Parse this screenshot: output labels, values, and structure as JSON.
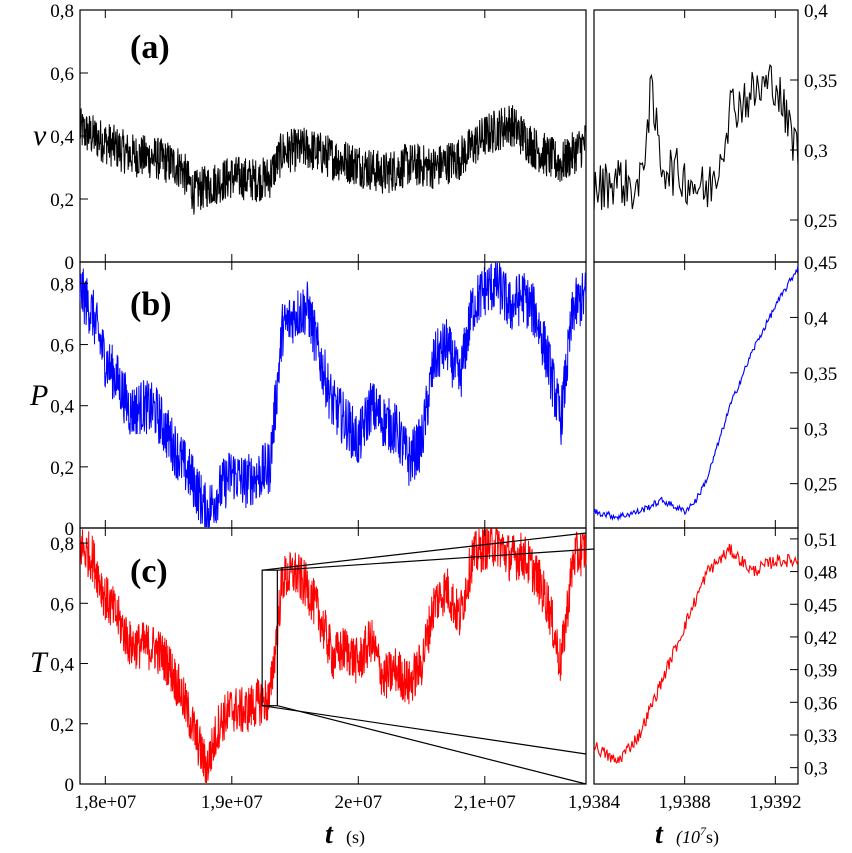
{
  "chart_data": [
    {
      "panel": "(a)",
      "type": "line",
      "ylabel": "v",
      "xlim": [
        17800000,
        21800000
      ],
      "ylim": [
        0,
        0.8
      ],
      "yticks": [
        "0",
        "0,2",
        "0,4",
        "0,6",
        "0,8"
      ],
      "color": "#000000",
      "series": [
        {
          "x": [
            17800000,
            18000000,
            18200000,
            18400000,
            18600000,
            18700000,
            18800000,
            19000000,
            19200000,
            19300000,
            19400000,
            19600000,
            19800000,
            20000000,
            20200000,
            20400000,
            20600000,
            20800000,
            21000000,
            21200000,
            21400000,
            21600000,
            21800000
          ],
          "values": [
            0.42,
            0.38,
            0.34,
            0.33,
            0.3,
            0.22,
            0.24,
            0.27,
            0.26,
            0.27,
            0.35,
            0.36,
            0.33,
            0.31,
            0.28,
            0.31,
            0.3,
            0.33,
            0.4,
            0.44,
            0.36,
            0.31,
            0.38
          ]
        }
      ]
    },
    {
      "panel": "(b)",
      "type": "line",
      "ylabel": "P",
      "xlim": [
        17800000,
        21800000
      ],
      "ylim": [
        0,
        0.87
      ],
      "yticks": [
        "0",
        "0,2",
        "0,4",
        "0,6",
        "0,8"
      ],
      "color": "#0000ff",
      "series": [
        {
          "x": [
            17800000,
            17900000,
            18000000,
            18100000,
            18200000,
            18300000,
            18400000,
            18500000,
            18600000,
            18700000,
            18800000,
            18900000,
            19000000,
            19100000,
            19200000,
            19300000,
            19400000,
            19500000,
            19600000,
            19700000,
            19800000,
            19900000,
            20000000,
            20100000,
            20200000,
            20300000,
            20400000,
            20500000,
            20600000,
            20700000,
            20800000,
            20900000,
            21000000,
            21100000,
            21200000,
            21300000,
            21400000,
            21500000,
            21600000,
            21700000,
            21800000
          ],
          "values": [
            0.78,
            0.7,
            0.55,
            0.48,
            0.38,
            0.4,
            0.38,
            0.3,
            0.22,
            0.15,
            0.05,
            0.12,
            0.18,
            0.15,
            0.17,
            0.2,
            0.65,
            0.7,
            0.72,
            0.55,
            0.4,
            0.35,
            0.28,
            0.4,
            0.35,
            0.32,
            0.22,
            0.28,
            0.55,
            0.6,
            0.48,
            0.72,
            0.78,
            0.8,
            0.72,
            0.76,
            0.7,
            0.55,
            0.35,
            0.72,
            0.76
          ]
        }
      ]
    },
    {
      "panel": "(c)",
      "type": "line",
      "ylabel": "T",
      "xlabel": "t",
      "xunit": "(s)",
      "xlim": [
        17800000,
        21800000
      ],
      "ylim": [
        0,
        0.85
      ],
      "yticks": [
        "0",
        "0,2",
        "0,4",
        "0,6",
        "0,8"
      ],
      "xticks": [
        {
          "value": 18000000,
          "label": "1,8e+07"
        },
        {
          "value": 19000000,
          "label": "1,9e+07"
        },
        {
          "value": 20000000,
          "label": "2e+07"
        },
        {
          "value": 21000000,
          "label": "2,1e+07"
        }
      ],
      "color": "#ff0000",
      "series": [
        {
          "x": [
            17800000,
            17900000,
            18000000,
            18100000,
            18200000,
            18300000,
            18400000,
            18500000,
            18600000,
            18700000,
            18800000,
            18900000,
            19000000,
            19100000,
            19200000,
            19300000,
            19400000,
            19500000,
            19600000,
            19700000,
            19800000,
            19900000,
            20000000,
            20100000,
            20200000,
            20300000,
            20400000,
            20500000,
            20600000,
            20700000,
            20800000,
            20900000,
            21000000,
            21100000,
            21200000,
            21300000,
            21400000,
            21500000,
            21600000,
            21700000,
            21800000
          ],
          "values": [
            0.79,
            0.75,
            0.62,
            0.55,
            0.46,
            0.46,
            0.45,
            0.4,
            0.3,
            0.18,
            0.05,
            0.2,
            0.25,
            0.24,
            0.27,
            0.28,
            0.68,
            0.7,
            0.65,
            0.55,
            0.42,
            0.45,
            0.4,
            0.48,
            0.35,
            0.38,
            0.33,
            0.4,
            0.6,
            0.65,
            0.55,
            0.75,
            0.79,
            0.8,
            0.75,
            0.76,
            0.7,
            0.6,
            0.4,
            0.75,
            0.78
          ]
        }
      ],
      "zoom_box": {
        "x": [
          19240000,
          19360000
        ],
        "y": [
          0.26,
          0.71
        ]
      }
    },
    {
      "panel": "inset-a",
      "type": "line",
      "xlim": [
        19384000,
        19393000
      ],
      "ylim": [
        0.22,
        0.4
      ],
      "yticks": [
        {
          "value": 0.25,
          "label": "0,25"
        },
        {
          "value": 0.3,
          "label": "0,3"
        },
        {
          "value": 0.35,
          "label": "0,35"
        },
        {
          "value": 0.4,
          "label": "0,4"
        }
      ],
      "color": "#000000",
      "series": [
        {
          "x": [
            19384000,
            19385000,
            19386000,
            19386500,
            19387000,
            19388000,
            19389000,
            19389500,
            19390000,
            19391000,
            19392000,
            19392500,
            19393000
          ],
          "values": [
            0.27,
            0.28,
            0.27,
            0.34,
            0.29,
            0.28,
            0.27,
            0.29,
            0.33,
            0.34,
            0.35,
            0.32,
            0.3
          ]
        }
      ]
    },
    {
      "panel": "inset-b",
      "type": "line",
      "xlim": [
        19384000,
        19393000
      ],
      "ylim": [
        0.21,
        0.45
      ],
      "yticks": [
        {
          "value": 0.25,
          "label": "0,25"
        },
        {
          "value": 0.3,
          "label": "0,3"
        },
        {
          "value": 0.35,
          "label": "0,35"
        },
        {
          "value": 0.4,
          "label": "0,4"
        },
        {
          "value": 0.45,
          "label": "0,45"
        }
      ],
      "color": "#0000ff",
      "series": [
        {
          "x": [
            19384000,
            19385000,
            19386000,
            19387000,
            19388000,
            19388500,
            19389000,
            19390000,
            19391000,
            19392000,
            19393000
          ],
          "values": [
            0.225,
            0.22,
            0.225,
            0.235,
            0.225,
            0.235,
            0.255,
            0.32,
            0.37,
            0.41,
            0.445
          ]
        }
      ]
    },
    {
      "panel": "inset-c",
      "type": "line",
      "xlim": [
        19384000,
        19393000
      ],
      "ylim": [
        0.285,
        0.52
      ],
      "yticks": [
        {
          "value": 0.3,
          "label": "0,3"
        },
        {
          "value": 0.33,
          "label": "0,33"
        },
        {
          "value": 0.36,
          "label": "0,36"
        },
        {
          "value": 0.39,
          "label": "0,39"
        },
        {
          "value": 0.42,
          "label": "0,42"
        },
        {
          "value": 0.45,
          "label": "0,45"
        },
        {
          "value": 0.48,
          "label": "0,48"
        },
        {
          "value": 0.51,
          "label": "0,51"
        }
      ],
      "xticks": [
        {
          "value": 19384000,
          "label": "1,9384"
        },
        {
          "value": 19388000,
          "label": "1,9388"
        },
        {
          "value": 19392000,
          "label": "1,9392"
        }
      ],
      "xlabel": "t",
      "xunit_pre": "(10",
      "xunit_exp": "7",
      "xunit_post": "s)",
      "color": "#ff0000",
      "series": [
        {
          "x": [
            19384000,
            19385000,
            19386000,
            19387000,
            19388000,
            19389000,
            19390000,
            19391000,
            19392000,
            19393000
          ],
          "values": [
            0.32,
            0.305,
            0.33,
            0.38,
            0.43,
            0.48,
            0.5,
            0.48,
            0.49,
            0.49
          ]
        }
      ]
    }
  ],
  "labels": {
    "a": "(a)",
    "b": "(b)",
    "c": "(c)",
    "v": "v",
    "P": "P",
    "T": "T",
    "xlabel_main": "t",
    "xunit_main": "(s)",
    "xlabel_inset": "t"
  }
}
